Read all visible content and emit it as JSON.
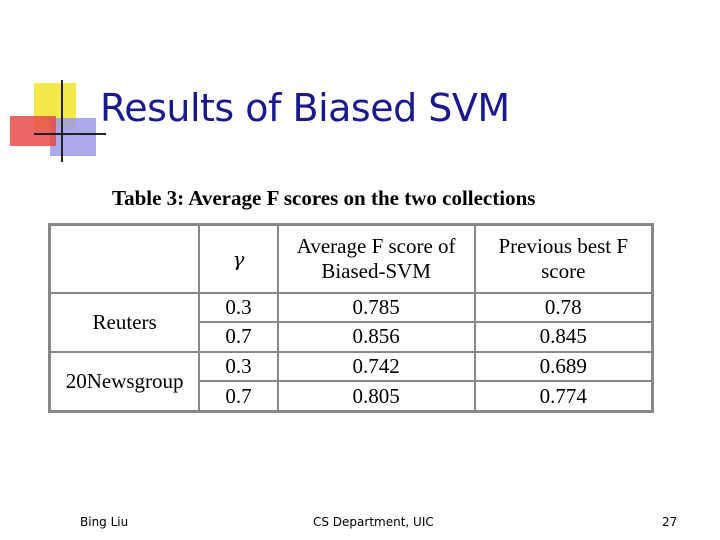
{
  "slide": {
    "title": "Results of Biased SVM",
    "caption": "Table 3: Average F scores on the two collections"
  },
  "table": {
    "headers": [
      "",
      "γ",
      "Average F score of Biased-SVM",
      "Previous best F score"
    ],
    "groups": [
      {
        "collection": "Reuters",
        "rows": [
          {
            "gamma": "0.3",
            "biased_svm": "0.785",
            "previous_best": "0.78"
          },
          {
            "gamma": "0.7",
            "biased_svm": "0.856",
            "previous_best": "0.845"
          }
        ]
      },
      {
        "collection": "20Newsgroup",
        "rows": [
          {
            "gamma": "0.3",
            "biased_svm": "0.742",
            "previous_best": "0.689"
          },
          {
            "gamma": "0.7",
            "biased_svm": "0.805",
            "previous_best": "0.774"
          }
        ]
      }
    ]
  },
  "footer": {
    "author": "Bing Liu",
    "department": "CS Department, UIC",
    "page_number": "27"
  },
  "colors": {
    "title": "#1a1a8c",
    "deco_yellow": "#f5e84a",
    "deco_red": "#e84a4a",
    "deco_blue": "#8a8ae0",
    "table_border": "#888888"
  }
}
